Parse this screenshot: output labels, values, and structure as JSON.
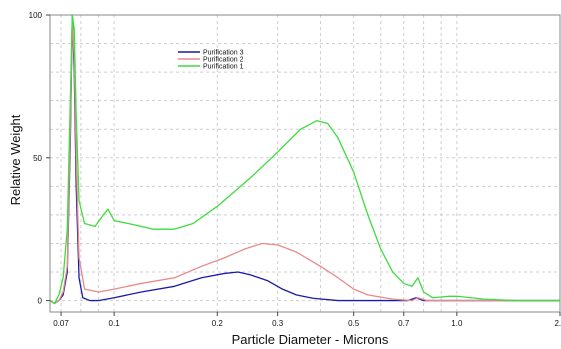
{
  "chart_data": {
    "type": "line",
    "title": "",
    "xlabel": "Particle Diameter  -  Microns",
    "ylabel": "Relative Weight",
    "x_scale": "log",
    "xlim": [
      0.065,
      2.0
    ],
    "ylim": [
      -4,
      100
    ],
    "grid": true,
    "legend_position": "top-left",
    "x_ticks": [
      {
        "value": 0.07,
        "label": "0.07"
      },
      {
        "value": 0.1,
        "label": "0.1"
      },
      {
        "value": 0.2,
        "label": "0.2"
      },
      {
        "value": 0.3,
        "label": "0.3"
      },
      {
        "value": 0.5,
        "label": "0.5"
      },
      {
        "value": 0.7,
        "label": "0.7"
      },
      {
        "value": 1.0,
        "label": "1.0"
      },
      {
        "value": 2.0,
        "label": "2.0"
      }
    ],
    "y_ticks": [
      {
        "value": 0,
        "label": "0"
      },
      {
        "value": 50,
        "label": "50"
      },
      {
        "value": 100,
        "label": "100"
      }
    ],
    "series": [
      {
        "name": "Purification 3",
        "color": "#1a1aa8",
        "points": [
          [
            0.065,
            0
          ],
          [
            0.067,
            -1
          ],
          [
            0.069,
            0
          ],
          [
            0.071,
            2
          ],
          [
            0.073,
            10
          ],
          [
            0.0745,
            55
          ],
          [
            0.0755,
            100
          ],
          [
            0.0765,
            80
          ],
          [
            0.0775,
            40
          ],
          [
            0.079,
            8
          ],
          [
            0.081,
            1
          ],
          [
            0.085,
            0
          ],
          [
            0.09,
            0
          ],
          [
            0.1,
            1
          ],
          [
            0.12,
            3
          ],
          [
            0.15,
            5
          ],
          [
            0.18,
            8
          ],
          [
            0.21,
            9.5
          ],
          [
            0.23,
            10
          ],
          [
            0.25,
            9
          ],
          [
            0.28,
            7
          ],
          [
            0.31,
            4
          ],
          [
            0.34,
            2
          ],
          [
            0.38,
            0.8
          ],
          [
            0.45,
            0
          ],
          [
            0.6,
            0
          ],
          [
            0.72,
            0
          ],
          [
            0.76,
            1
          ],
          [
            0.8,
            0
          ],
          [
            1.0,
            0
          ],
          [
            1.5,
            0
          ],
          [
            2.0,
            0
          ]
        ]
      },
      {
        "name": "Purification 2",
        "color": "#e88a8a",
        "points": [
          [
            0.065,
            0
          ],
          [
            0.067,
            -1
          ],
          [
            0.069,
            0
          ],
          [
            0.071,
            3
          ],
          [
            0.073,
            12
          ],
          [
            0.0745,
            60
          ],
          [
            0.0755,
            98
          ],
          [
            0.0765,
            85
          ],
          [
            0.0775,
            50
          ],
          [
            0.079,
            15
          ],
          [
            0.082,
            4
          ],
          [
            0.09,
            3
          ],
          [
            0.1,
            4
          ],
          [
            0.12,
            6
          ],
          [
            0.15,
            8
          ],
          [
            0.18,
            12
          ],
          [
            0.21,
            15
          ],
          [
            0.24,
            18
          ],
          [
            0.27,
            20
          ],
          [
            0.3,
            19.5
          ],
          [
            0.34,
            17
          ],
          [
            0.4,
            12
          ],
          [
            0.45,
            8
          ],
          [
            0.5,
            4
          ],
          [
            0.55,
            2
          ],
          [
            0.65,
            0.5
          ],
          [
            0.74,
            0
          ],
          [
            0.77,
            1
          ],
          [
            0.82,
            0
          ],
          [
            1.0,
            0
          ],
          [
            1.5,
            0
          ],
          [
            2.0,
            0
          ]
        ]
      },
      {
        "name": "Purification 1",
        "color": "#3ddc3d",
        "points": [
          [
            0.065,
            0
          ],
          [
            0.067,
            -1
          ],
          [
            0.069,
            2
          ],
          [
            0.071,
            8
          ],
          [
            0.073,
            25
          ],
          [
            0.0745,
            70
          ],
          [
            0.0755,
            100
          ],
          [
            0.0765,
            95
          ],
          [
            0.0775,
            65
          ],
          [
            0.079,
            35
          ],
          [
            0.082,
            27
          ],
          [
            0.088,
            26
          ],
          [
            0.093,
            30
          ],
          [
            0.096,
            32
          ],
          [
            0.1,
            28
          ],
          [
            0.11,
            27
          ],
          [
            0.12,
            26
          ],
          [
            0.13,
            25
          ],
          [
            0.15,
            25
          ],
          [
            0.17,
            27
          ],
          [
            0.2,
            33
          ],
          [
            0.25,
            43
          ],
          [
            0.3,
            52
          ],
          [
            0.35,
            60
          ],
          [
            0.39,
            63
          ],
          [
            0.42,
            62
          ],
          [
            0.45,
            57
          ],
          [
            0.5,
            45
          ],
          [
            0.55,
            30
          ],
          [
            0.6,
            18
          ],
          [
            0.65,
            10
          ],
          [
            0.7,
            6
          ],
          [
            0.74,
            5
          ],
          [
            0.77,
            8
          ],
          [
            0.8,
            3
          ],
          [
            0.85,
            1
          ],
          [
            0.95,
            1.5
          ],
          [
            1.0,
            1.5
          ],
          [
            1.2,
            0.5
          ],
          [
            1.5,
            0
          ],
          [
            2.0,
            0
          ]
        ]
      }
    ]
  }
}
